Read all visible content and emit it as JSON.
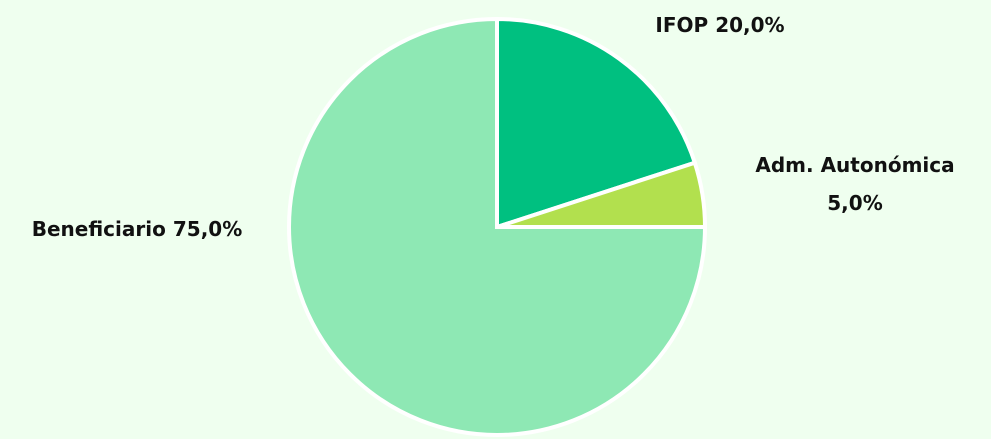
{
  "chart_data": {
    "type": "pie",
    "categories": [
      "IFOP",
      "Adm. Autonómica",
      "Beneficiario"
    ],
    "values": [
      20,
      5,
      75
    ],
    "value_labels": [
      "20,0%",
      "5,0%",
      "75,0%"
    ],
    "colors": [
      "#00c080",
      "#b2e04e",
      "#8ee8b4"
    ]
  }
}
